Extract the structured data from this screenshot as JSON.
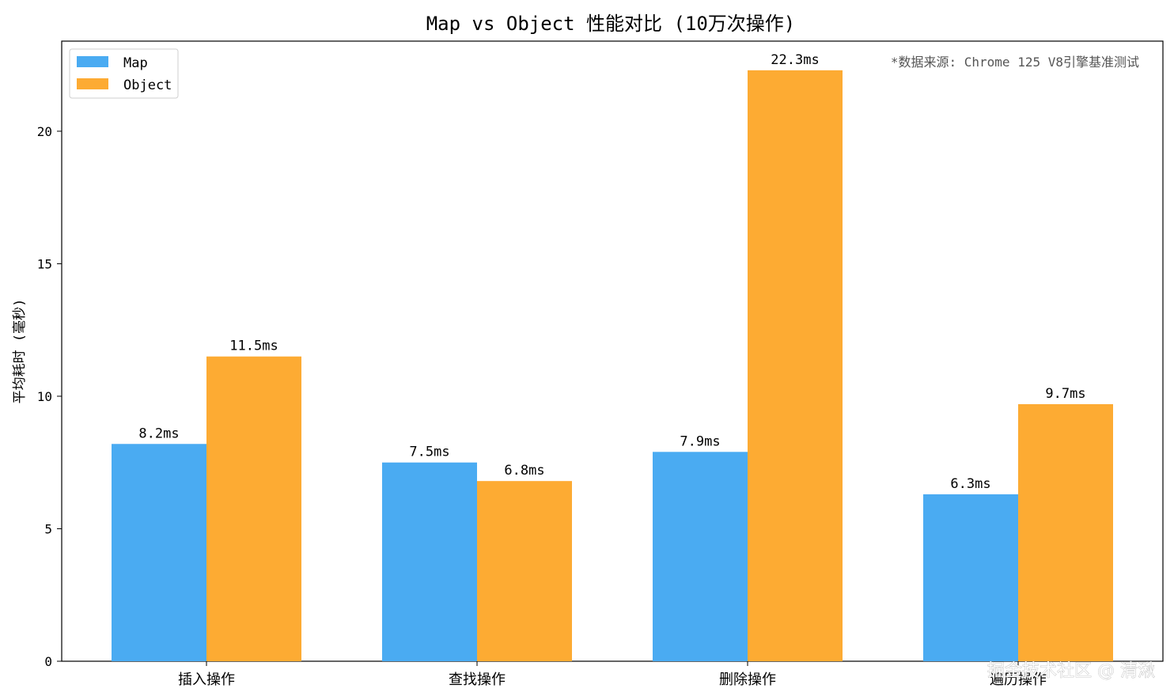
{
  "chart_data": {
    "type": "bar",
    "title": "Map vs Object 性能对比 (10万次操作)",
    "xlabel": "",
    "ylabel": "平均耗时 (毫秒)",
    "categories": [
      "插入操作",
      "查找操作",
      "删除操作",
      "遍历操作"
    ],
    "series": [
      {
        "name": "Map",
        "color": "#4aabf2",
        "values": [
          8.2,
          7.5,
          7.9,
          6.3
        ],
        "labels": [
          "8.2ms",
          "7.5ms",
          "7.9ms",
          "6.3ms"
        ]
      },
      {
        "name": "Object",
        "color": "#fdab33",
        "values": [
          11.5,
          6.8,
          22.3,
          9.7
        ],
        "labels": [
          "11.5ms",
          "6.8ms",
          "22.3ms",
          "9.7ms"
        ]
      }
    ],
    "ylim": [
      0,
      23.4
    ],
    "yticks": [
      0,
      5,
      10,
      15,
      20
    ],
    "grid": false,
    "legend_position": "top-left",
    "annotation": "*数据来源: Chrome 125 V8引擎基准测试"
  },
  "watermark": "掘金技术社区 @ 清湫"
}
